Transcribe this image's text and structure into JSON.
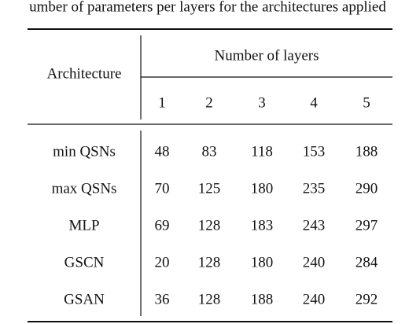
{
  "title": "umber of parameters per layers for the architectures applied",
  "table": {
    "header": {
      "architecture": "Architecture",
      "group": "Number of layers",
      "columns": [
        1,
        2,
        3,
        4,
        5
      ]
    },
    "rows": [
      {
        "name": "min QSNs",
        "values": [
          48,
          83,
          118,
          153,
          188
        ]
      },
      {
        "name": "max QSNs",
        "values": [
          70,
          125,
          180,
          235,
          290
        ]
      },
      {
        "name": "MLP",
        "values": [
          69,
          128,
          183,
          243,
          297
        ]
      },
      {
        "name": "GSCN",
        "values": [
          20,
          128,
          180,
          240,
          284
        ]
      },
      {
        "name": "GSAN",
        "values": [
          36,
          128,
          188,
          240,
          292
        ]
      }
    ]
  }
}
